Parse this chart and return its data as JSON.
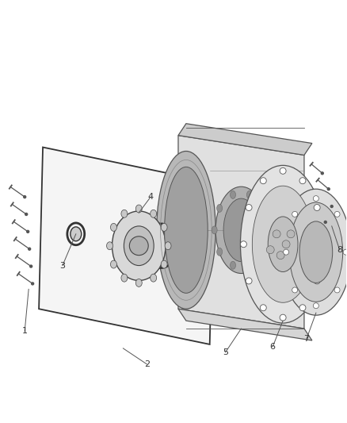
{
  "bg_color": "#ffffff",
  "line_color": "#555555",
  "fig_width": 4.38,
  "fig_height": 5.33,
  "dpi": 100,
  "label_fontsize": 8,
  "label_color": "#333333"
}
